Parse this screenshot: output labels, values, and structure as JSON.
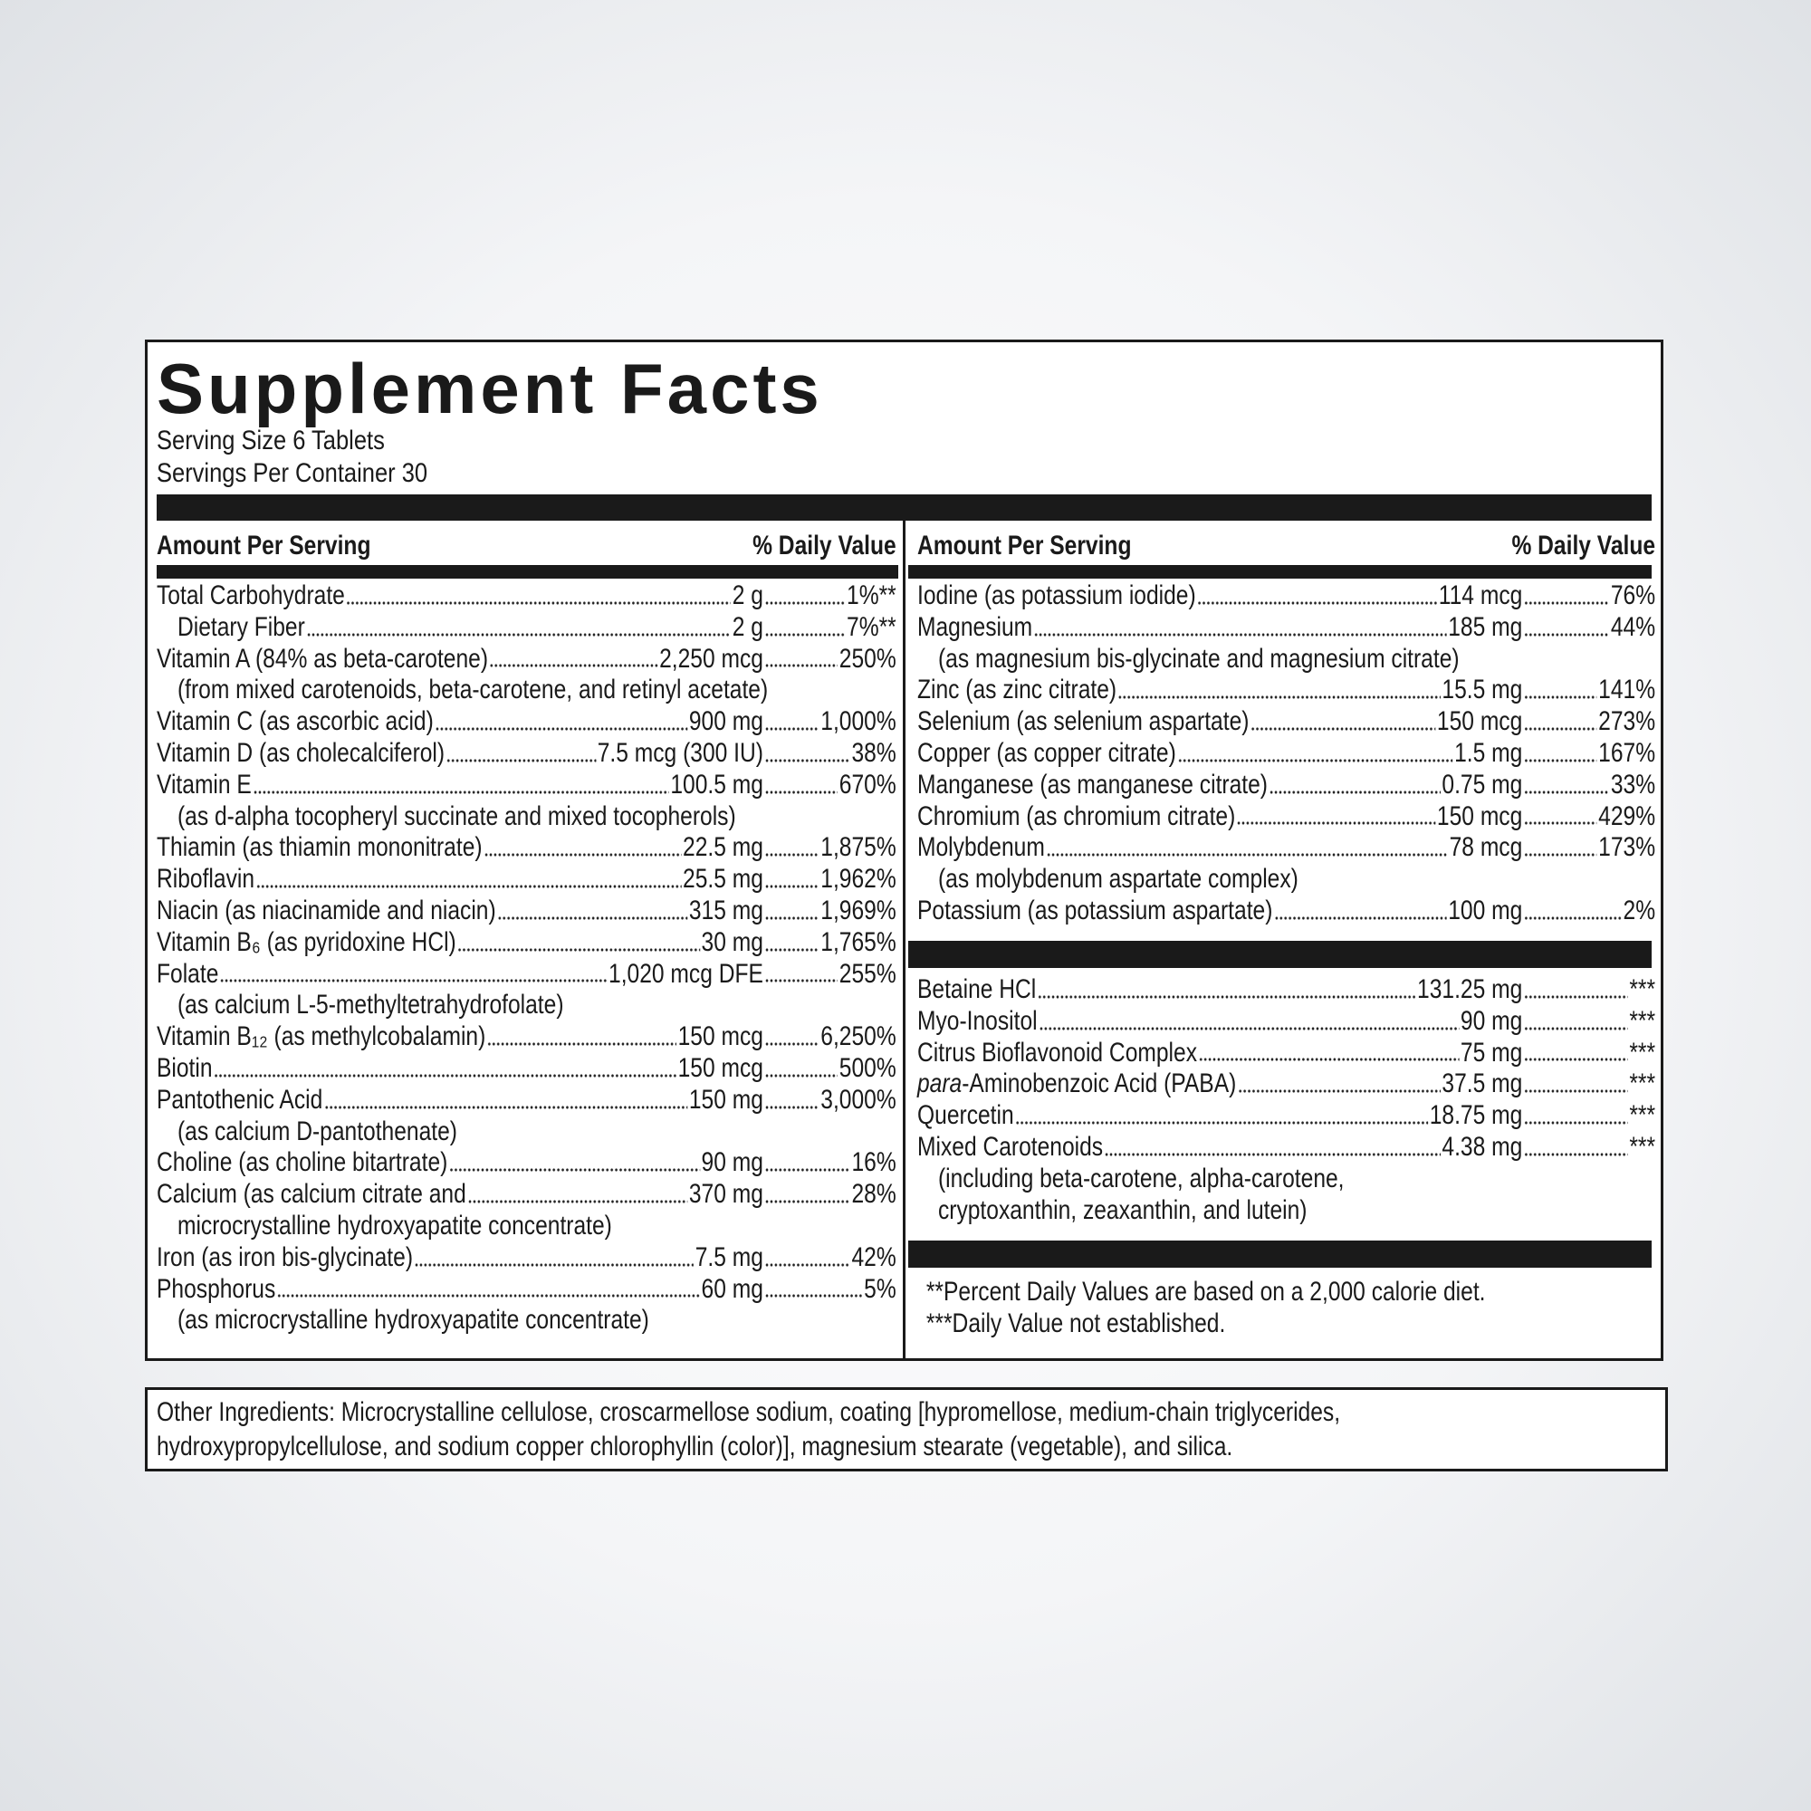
{
  "title": "Supplement Facts",
  "serving_size": "Serving Size 6 Tablets",
  "servings_per_container": "Servings Per Container 30",
  "left": {
    "header": {
      "amount": "Amount Per Serving",
      "dv": "% Daily Value"
    },
    "rows": [
      {
        "name": "Total Carbohydrate",
        "amount": "2 g",
        "dv": "1%**",
        "sub": [
          {
            "name": "Dietary Fiber",
            "amount": "2 g",
            "dv": "7%**"
          }
        ]
      },
      {
        "name": "Vitamin A (84% as beta-carotene)",
        "amount": "2,250 mcg",
        "dv": "250%",
        "note": [
          "(from mixed carotenoids, beta-carotene, and retinyl acetate)"
        ]
      },
      {
        "name": "Vitamin C (as ascorbic acid)",
        "amount": "900 mg",
        "dv": "1,000%"
      },
      {
        "name": "Vitamin D (as cholecalciferol)",
        "amount": "7.5 mcg (300 IU)",
        "dv": "38%"
      },
      {
        "name": "Vitamin E",
        "amount": "100.5 mg",
        "dv": "670%",
        "note": [
          "(as d-alpha tocopheryl succinate and mixed tocopherols)"
        ]
      },
      {
        "name": "Thiamin (as thiamin mononitrate)",
        "amount": "22.5 mg",
        "dv": "1,875%"
      },
      {
        "name": "Riboflavin",
        "amount": "25.5 mg",
        "dv": "1,962%"
      },
      {
        "name": "Niacin (as niacinamide and niacin)",
        "amount": "315 mg",
        "dv": "1,969%"
      },
      {
        "name": "Vitamin B₆ (as pyridoxine HCl)",
        "amount": "30 mg",
        "dv": "1,765%"
      },
      {
        "name": "Folate",
        "amount": "1,020 mcg DFE",
        "dv": "255%",
        "note": [
          "(as calcium L-5-methyltetrahydrofolate)"
        ]
      },
      {
        "name": "Vitamin B₁₂ (as methylcobalamin)",
        "amount": "150 mcg",
        "dv": "6,250%"
      },
      {
        "name": "Biotin",
        "amount": "150 mcg",
        "dv": "500%"
      },
      {
        "name": "Pantothenic Acid",
        "amount": "150 mg",
        "dv": "3,000%",
        "note": [
          "(as calcium D-pantothenate)"
        ]
      },
      {
        "name": "Choline (as choline bitartrate)",
        "amount": "90 mg",
        "dv": "16%"
      },
      {
        "name": "Calcium (as calcium citrate and",
        "amount": "370 mg",
        "dv": "28%",
        "note": [
          "microcrystalline hydroxyapatite concentrate)"
        ]
      },
      {
        "name": "Iron (as iron bis-glycinate)",
        "amount": "7.5 mg",
        "dv": "42%"
      },
      {
        "name": "Phosphorus",
        "amount": "60 mg",
        "dv": "5%",
        "note": [
          "(as microcrystalline hydroxyapatite concentrate)"
        ]
      }
    ]
  },
  "right": {
    "header": {
      "amount": "Amount Per Serving",
      "dv": "% Daily Value"
    },
    "rows": [
      {
        "name": "Iodine (as potassium iodide)",
        "amount": "114 mcg",
        "dv": "76%"
      },
      {
        "name": "Magnesium",
        "amount": "185 mg",
        "dv": "44%",
        "note": [
          "(as magnesium bis-glycinate and magnesium citrate)"
        ]
      },
      {
        "name": "Zinc (as zinc citrate)",
        "amount": "15.5 mg",
        "dv": "141%"
      },
      {
        "name": "Selenium (as selenium aspartate)",
        "amount": "150 mcg",
        "dv": "273%"
      },
      {
        "name": "Copper (as copper citrate)",
        "amount": "1.5 mg",
        "dv": "167%"
      },
      {
        "name": "Manganese (as manganese citrate)",
        "amount": "0.75 mg",
        "dv": "33%"
      },
      {
        "name": "Chromium (as chromium citrate)",
        "amount": "150 mcg",
        "dv": "429%"
      },
      {
        "name": "Molybdenum",
        "amount": "78 mcg",
        "dv": "173%",
        "note": [
          "(as molybdenum aspartate complex)"
        ]
      },
      {
        "name": "Potassium (as potassium aspartate)",
        "amount": "100 mg",
        "dv": "2%"
      }
    ],
    "rows2": [
      {
        "name": "Betaine HCl",
        "amount": "131.25 mg",
        "dv": "***"
      },
      {
        "name": "Myo-Inositol",
        "amount": "90 mg",
        "dv": "***"
      },
      {
        "name": "Citrus Bioflavonoid Complex",
        "amount": "75 mg",
        "dv": "***"
      },
      {
        "name_italic": "para",
        "name": "-Aminobenzoic Acid (PABA)",
        "amount": "37.5 mg",
        "dv": "***"
      },
      {
        "name": "Quercetin",
        "amount": "18.75 mg",
        "dv": "***"
      },
      {
        "name": "Mixed Carotenoids",
        "amount": "4.38 mg",
        "dv": "***",
        "note": [
          "(including beta-carotene, alpha-carotene,",
          "cryptoxanthin, zeaxanthin, and lutein)"
        ]
      }
    ],
    "footnotes": [
      "**Percent Daily Values are based on a 2,000 calorie diet.",
      "***Daily Value not established."
    ]
  },
  "other_ingredients": [
    "Other Ingredients: Microcrystalline cellulose, croscarmellose sodium, coating [hypromellose, medium-chain triglycerides,",
    "hydroxypropylcellulose, and sodium copper chlorophyllin (color)], magnesium stearate (vegetable), and silica."
  ]
}
